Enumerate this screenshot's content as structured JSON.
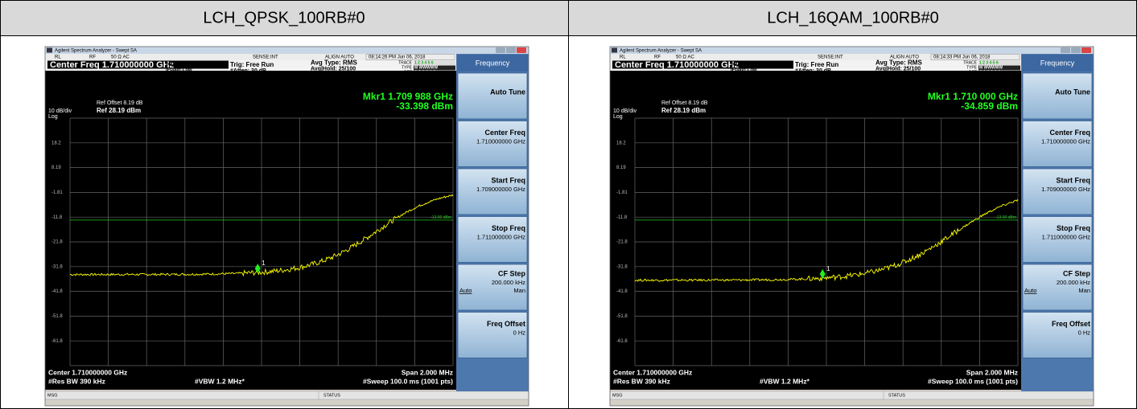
{
  "header": [
    "LCH_QPSK_100RB#0",
    "LCH_16QAM_100RB#0"
  ],
  "screens": [
    {
      "window_title": "Agilent Spectrum Analyzer - Swept SA",
      "status_bar": [
        "RL",
        "RF",
        "50 Ω  AC",
        "SENSE:INT",
        "ALIGN AUTO",
        "08:14:26 PM Jun 06, 2018"
      ],
      "center_freq_box": "Center Freq 1.710000000 GHz",
      "settings": [
        "PNO: Fast",
        "IFGain:Low",
        "Trig: Free Run",
        "#Atten: 30 dB",
        "Avg Type: RMS",
        "Avg|Hold: 25/100"
      ],
      "trace_labels": [
        "TRACE",
        "TYPE",
        "DET"
      ],
      "trace_values": [
        "1 2 3 4 5 6",
        "M WWWWW",
        "A A A A A A"
      ],
      "ref_offset": "Ref Offset 8.19 dB",
      "scale": "10 dB/div",
      "scale_type": "Log",
      "ref_level": "Ref 28.19 dBm",
      "marker_freq": "Mkr1 1.709 988 GHz",
      "marker_level": "-33.398 dBm",
      "marker_id": "1",
      "y_labels": [
        "18.2",
        "8.19",
        "-1.81",
        "-11.8",
        "-21.8",
        "-31.8",
        "-41.8",
        "-51.8",
        "-61.8"
      ],
      "display_line": "-13.00 dBm",
      "footer": {
        "center": "Center 1.710000000 GHz",
        "span": "Span 2.000 MHz",
        "rbw": "#Res BW 390 kHz",
        "vbw": "#VBW 1.2 MHz*",
        "sweep": "#Sweep  100.0 ms (1001 pts)"
      },
      "msg": "MSG",
      "status": "STATUS",
      "menu": {
        "title": "Frequency",
        "keys": [
          {
            "label": "Auto Tune"
          },
          {
            "label": "Center Freq",
            "value": "1.710000000 GHz"
          },
          {
            "label": "Start Freq",
            "value": "1.709000000 GHz"
          },
          {
            "label": "Stop Freq",
            "value": "1.711000000 GHz"
          },
          {
            "label": "CF Step",
            "value": "200.000 kHz",
            "options": [
              "Auto",
              "Man"
            ]
          },
          {
            "label": "Freq Offset",
            "value": "0 Hz"
          }
        ]
      }
    },
    {
      "window_title": "Agilent Spectrum Analyzer - Swept SA",
      "status_bar": [
        "RL",
        "RF",
        "50 Ω  AC",
        "SENSE:INT",
        "ALIGN AUTO",
        "08:14:33 PM Jun 06, 2018"
      ],
      "center_freq_box": "Center Freq 1.710000000 GHz",
      "settings": [
        "PNO: Fast",
        "IFGain:Low",
        "Trig: Free Run",
        "#Atten: 30 dB",
        "Avg Type: RMS",
        "Avg|Hold: 25/100"
      ],
      "trace_labels": [
        "TRACE",
        "TYPE",
        "DET"
      ],
      "trace_values": [
        "1 2 3 4 5 6",
        "M WWWWW",
        "A A A A A A"
      ],
      "ref_offset": "Ref Offset 8.19 dB",
      "scale": "10 dB/div",
      "scale_type": "Log",
      "ref_level": "Ref 28.19 dBm",
      "marker_freq": "Mkr1 1.710 000 GHz",
      "marker_level": "-34.859 dBm",
      "marker_id": "1",
      "y_labels": [
        "18.2",
        "8.19",
        "-1.81",
        "-11.8",
        "-21.8",
        "-31.8",
        "-41.8",
        "-51.8",
        "-61.8"
      ],
      "display_line": "-13.00 dBm",
      "footer": {
        "center": "Center 1.710000000 GHz",
        "span": "Span 2.000 MHz",
        "rbw": "#Res BW 390 kHz",
        "vbw": "#VBW 1.2 MHz*",
        "sweep": "#Sweep  100.0 ms (1001 pts)"
      },
      "msg": "MSG",
      "status": "STATUS",
      "menu": {
        "title": "Frequency",
        "keys": [
          {
            "label": "Auto Tune"
          },
          {
            "label": "Center Freq",
            "value": "1.710000000 GHz"
          },
          {
            "label": "Start Freq",
            "value": "1.709000000 GHz"
          },
          {
            "label": "Stop Freq",
            "value": "1.711000000 GHz"
          },
          {
            "label": "CF Step",
            "value": "200.000 kHz",
            "options": [
              "Auto",
              "Man"
            ]
          },
          {
            "label": "Freq Offset",
            "value": "0 Hz"
          }
        ]
      }
    }
  ]
}
